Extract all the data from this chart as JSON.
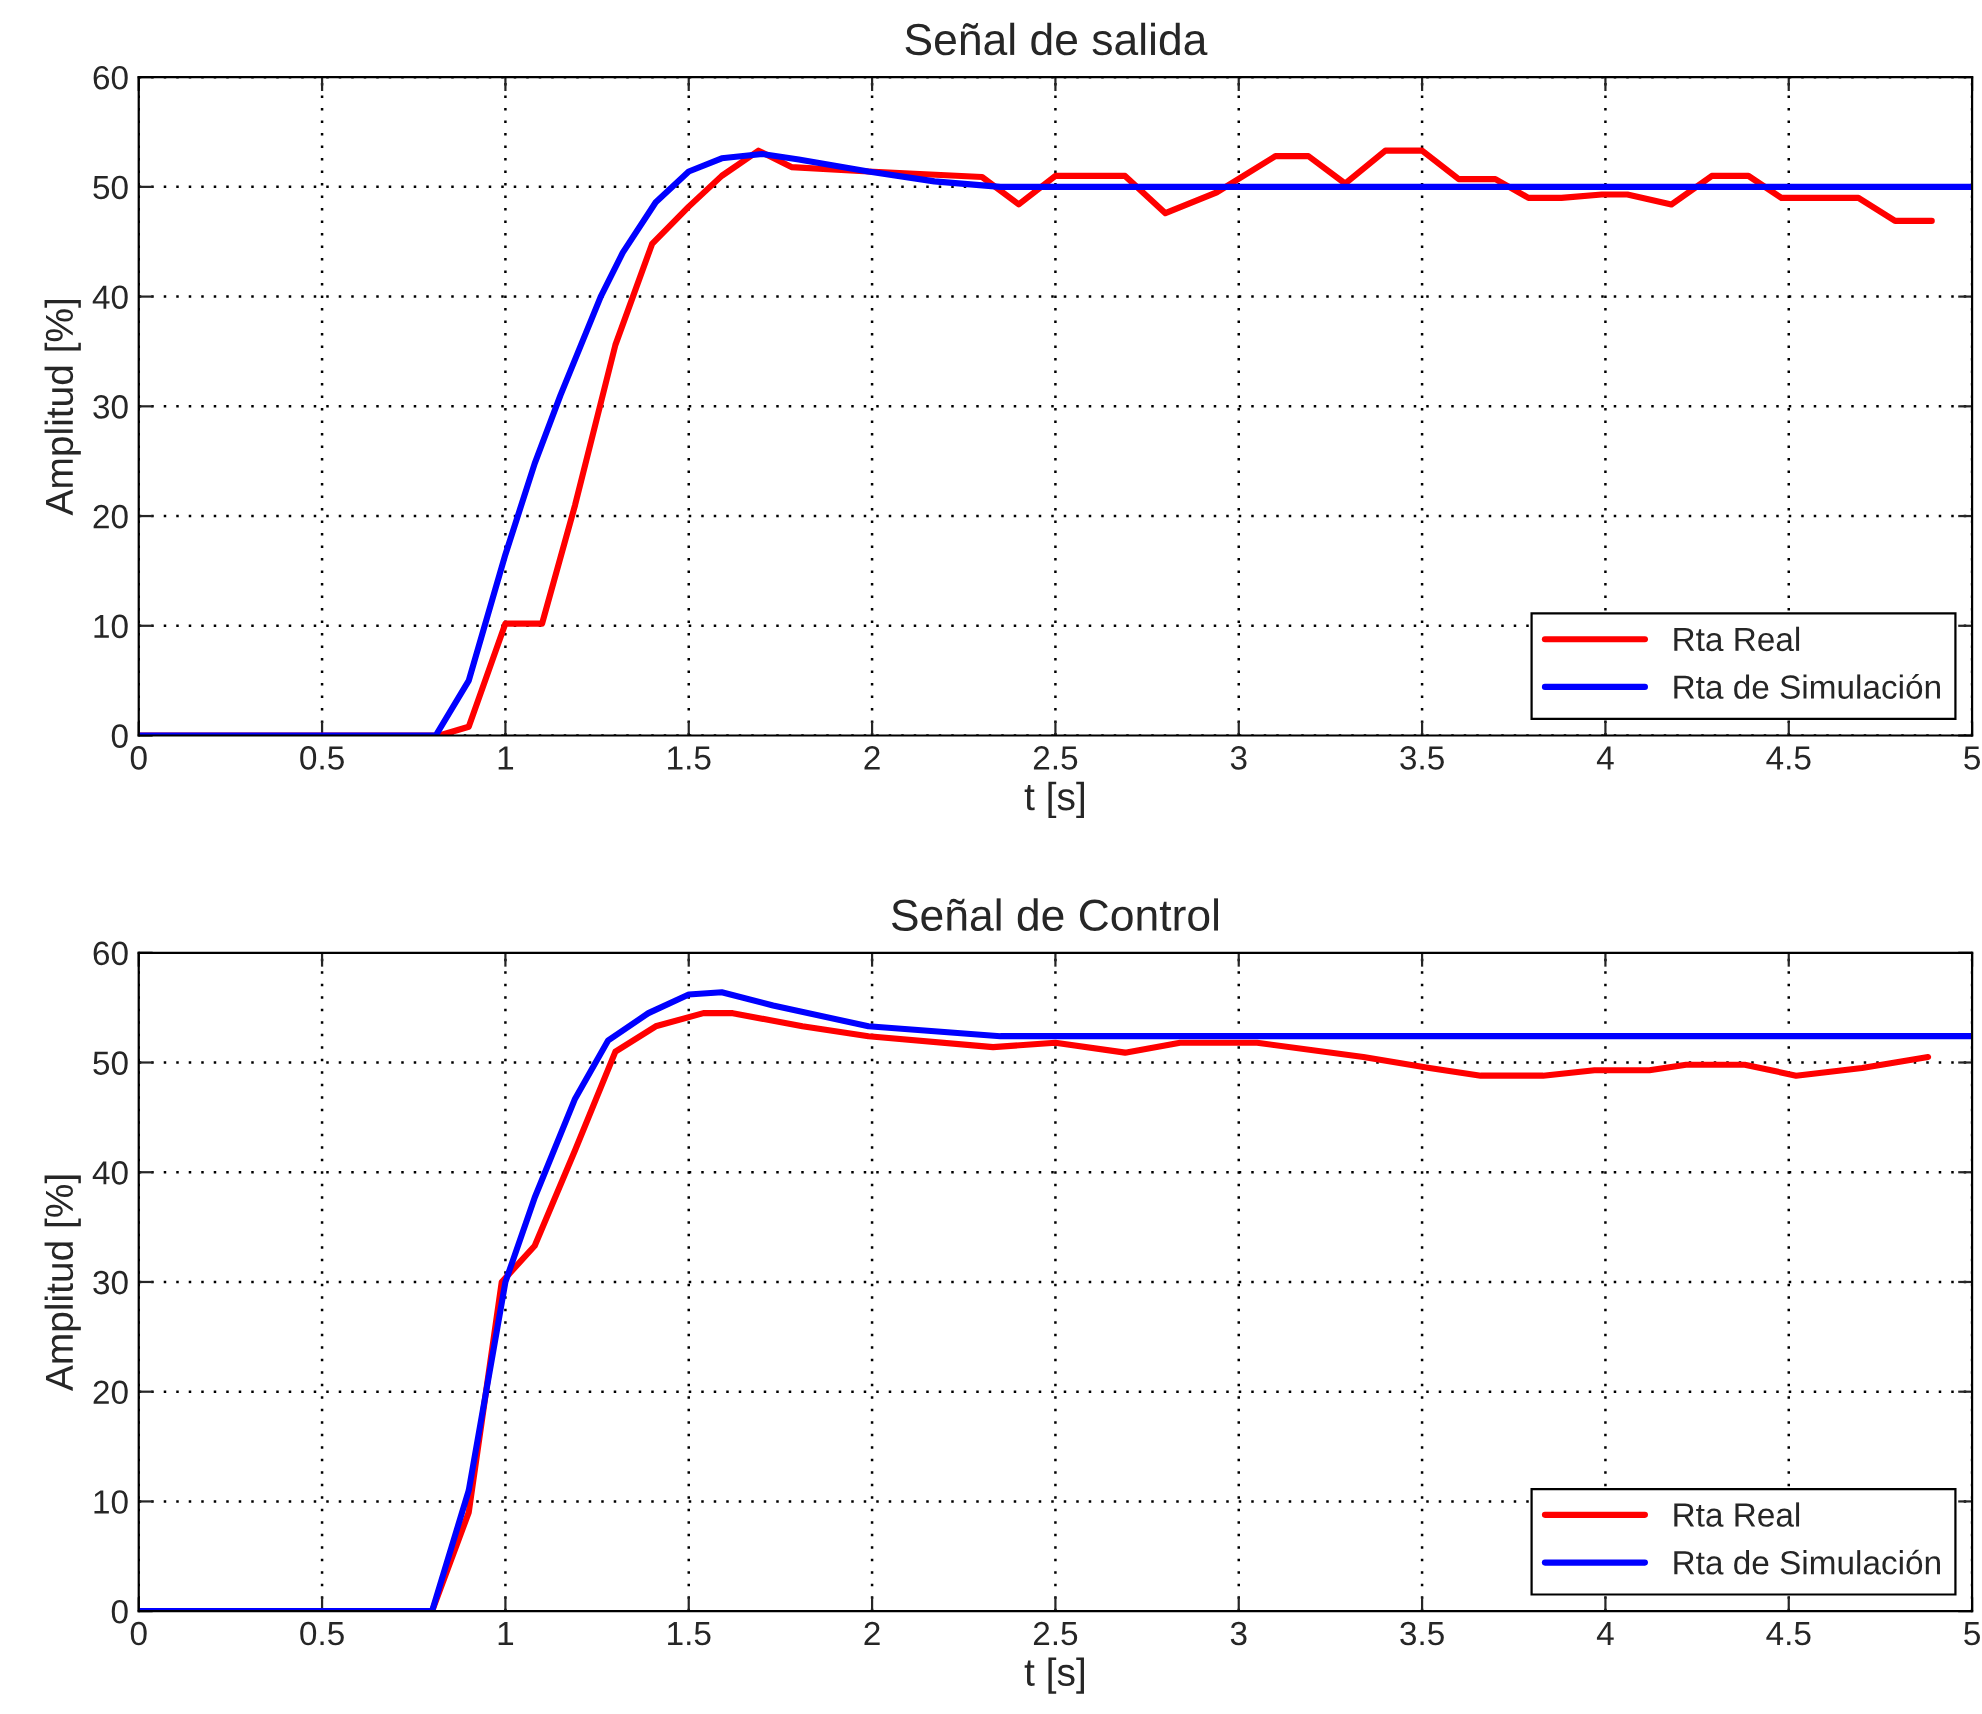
{
  "chart_data": [
    {
      "type": "line",
      "title": "Señal de salida",
      "xlabel": "t [s]",
      "ylabel": "Amplitud [%]",
      "xlim": [
        0,
        5
      ],
      "ylim": [
        0,
        60
      ],
      "xticks": [
        0,
        0.5,
        1,
        1.5,
        2,
        2.5,
        3,
        3.5,
        4,
        4.5,
        5
      ],
      "yticks": [
        0,
        10,
        20,
        30,
        40,
        50,
        60
      ],
      "grid": true,
      "legend": "bottom right",
      "line_style": "solid",
      "series": [
        {
          "name": "Rta Real",
          "color": "#ff0000",
          "x": [
            0,
            0.82,
            0.9,
            1.0,
            1.1,
            1.19,
            1.3,
            1.4,
            1.5,
            1.59,
            1.69,
            1.78,
            1.99,
            2.3,
            2.4,
            2.5,
            2.69,
            2.8,
            2.94,
            3.1,
            3.19,
            3.29,
            3.4,
            3.5,
            3.6,
            3.7,
            3.79,
            3.88,
            3.99,
            4.06,
            4.18,
            4.29,
            4.39,
            4.48,
            4.69,
            4.79,
            4.89
          ],
          "values": [
            0,
            0,
            0.8,
            10.2,
            10.2,
            21,
            35.6,
            44.8,
            48.2,
            51,
            53.3,
            51.8,
            51.4,
            50.9,
            48.4,
            51,
            51,
            47.6,
            49.5,
            52.8,
            52.8,
            50.3,
            53.3,
            53.3,
            50.7,
            50.7,
            49,
            49,
            49.3,
            49.3,
            48.4,
            51,
            51,
            49,
            49,
            46.9,
            46.9
          ]
        },
        {
          "name": "Rta de Simulación",
          "color": "#0000ff",
          "x": [
            0,
            0.81,
            0.9,
            1.0,
            1.08,
            1.15,
            1.26,
            1.32,
            1.41,
            1.5,
            1.59,
            1.7,
            1.8,
            1.99,
            2.17,
            2.35,
            5
          ],
          "values": [
            0,
            0,
            5,
            16.5,
            24.8,
            31,
            40,
            44,
            48.6,
            51.4,
            52.6,
            53,
            52.5,
            51.4,
            50.5,
            50,
            50
          ]
        }
      ]
    },
    {
      "type": "line",
      "title": "Señal de Control",
      "xlabel": "t [s]",
      "ylabel": "Amplitud [%]",
      "xlim": [
        0,
        5
      ],
      "ylim": [
        0,
        60
      ],
      "xticks": [
        0,
        0.5,
        1,
        1.5,
        2,
        2.5,
        3,
        3.5,
        4,
        4.5,
        5
      ],
      "yticks": [
        0,
        10,
        20,
        30,
        40,
        50,
        60
      ],
      "grid": true,
      "legend": "bottom right",
      "line_style": "solid",
      "series": [
        {
          "name": "Rta Real",
          "color": "#ff0000",
          "x": [
            0,
            0.8,
            0.9,
            0.99,
            1.08,
            1.19,
            1.3,
            1.41,
            1.54,
            1.62,
            1.81,
            1.99,
            2.33,
            2.5,
            2.69,
            2.84,
            3.05,
            3.34,
            3.52,
            3.66,
            3.83,
            3.97,
            4.12,
            4.22,
            4.38,
            4.52,
            4.7,
            4.88
          ],
          "values": [
            0,
            0,
            9,
            30,
            33.3,
            42,
            51,
            53.3,
            54.5,
            54.5,
            53.3,
            52.4,
            51.4,
            51.8,
            50.9,
            51.8,
            51.8,
            50.5,
            49.5,
            48.8,
            48.8,
            49.3,
            49.3,
            49.8,
            49.8,
            48.8,
            49.5,
            50.5
          ]
        },
        {
          "name": "Rta de Simulación",
          "color": "#0000ff",
          "x": [
            0,
            0.8,
            0.9,
            1.0,
            1.08,
            1.19,
            1.28,
            1.39,
            1.5,
            1.59,
            1.73,
            1.99,
            2.35,
            5
          ],
          "values": [
            0,
            0,
            11,
            30,
            37.7,
            46.7,
            52,
            54.5,
            56.2,
            56.4,
            55.2,
            53.3,
            52.4,
            52.4
          ]
        }
      ]
    }
  ]
}
